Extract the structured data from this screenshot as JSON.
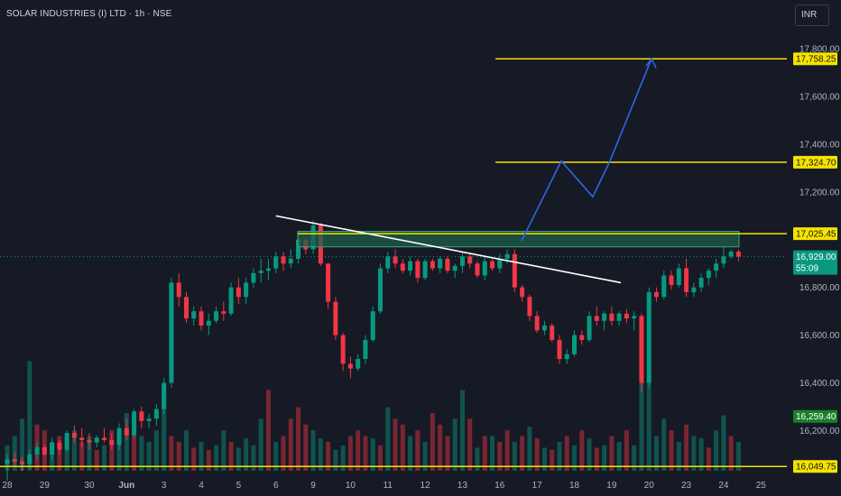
{
  "header": {
    "title": "SOLAR INDUSTRIES (I) LTD · 1h · NSE",
    "currency": "INR"
  },
  "chart_data": {
    "type": "candlestick",
    "title": "SOLAR INDUSTRIES (I) LTD · 1h · NSE",
    "y_range": [
      15990,
      17880
    ],
    "y_ticks": [
      {
        "value": 17800,
        "label": "17,800.00"
      },
      {
        "value": 17600,
        "label": "17,600.00"
      },
      {
        "value": 17400,
        "label": "17,400.00"
      },
      {
        "value": 17200,
        "label": "17,200.00"
      },
      {
        "value": 16800,
        "label": "16,800.00"
      },
      {
        "value": 16600,
        "label": "16,600.00"
      },
      {
        "value": 16400,
        "label": "16,400.00"
      },
      {
        "value": 16200,
        "label": "16,200.00"
      }
    ],
    "x_ticks": [
      {
        "bar": 0,
        "label": "28"
      },
      {
        "bar": 5,
        "label": "29"
      },
      {
        "bar": 11,
        "label": "30"
      },
      {
        "bar": 16,
        "label": "Jun"
      },
      {
        "bar": 21,
        "label": "3"
      },
      {
        "bar": 26,
        "label": "4"
      },
      {
        "bar": 31,
        "label": "5"
      },
      {
        "bar": 36,
        "label": "6"
      },
      {
        "bar": 41,
        "label": "9"
      },
      {
        "bar": 46,
        "label": "10"
      },
      {
        "bar": 51,
        "label": "11"
      },
      {
        "bar": 56,
        "label": "12"
      },
      {
        "bar": 61,
        "label": "13"
      },
      {
        "bar": 66,
        "label": "16"
      },
      {
        "bar": 71,
        "label": "17"
      },
      {
        "bar": 76,
        "label": "18"
      },
      {
        "bar": 81,
        "label": "19"
      },
      {
        "bar": 86,
        "label": "20"
      },
      {
        "bar": 91,
        "label": "23"
      },
      {
        "bar": 96,
        "label": "24"
      },
      {
        "bar": 101,
        "label": "25"
      }
    ],
    "candles": [
      [
        16060,
        16100,
        15990,
        16080
      ],
      [
        16080,
        16110,
        16050,
        16070
      ],
      [
        16070,
        16090,
        16030,
        16060
      ],
      [
        16060,
        16120,
        16040,
        16100
      ],
      [
        16100,
        16150,
        16080,
        16130
      ],
      [
        16130,
        16140,
        16090,
        16100
      ],
      [
        16100,
        16170,
        16080,
        16150
      ],
      [
        16150,
        16160,
        16100,
        16120
      ],
      [
        16120,
        16200,
        16110,
        16190
      ],
      [
        16190,
        16220,
        16150,
        16170
      ],
      [
        16170,
        16210,
        16130,
        16160
      ],
      [
        16160,
        16190,
        16120,
        16150
      ],
      [
        16150,
        16180,
        16130,
        16170
      ],
      [
        16170,
        16210,
        16150,
        16160
      ],
      [
        16160,
        16190,
        16120,
        16140
      ],
      [
        16140,
        16230,
        16120,
        16210
      ],
      [
        16210,
        16250,
        16160,
        16180
      ],
      [
        16180,
        16290,
        16170,
        16280
      ],
      [
        16280,
        16300,
        16210,
        16240
      ],
      [
        16240,
        16270,
        16210,
        16250
      ],
      [
        16250,
        16310,
        16220,
        16290
      ],
      [
        16290,
        16420,
        16270,
        16400
      ],
      [
        16400,
        16840,
        16380,
        16820
      ],
      [
        16820,
        16860,
        16720,
        16760
      ],
      [
        16760,
        16780,
        16650,
        16670
      ],
      [
        16670,
        16720,
        16640,
        16700
      ],
      [
        16700,
        16720,
        16620,
        16640
      ],
      [
        16640,
        16690,
        16600,
        16660
      ],
      [
        16660,
        16720,
        16650,
        16700
      ],
      [
        16700,
        16740,
        16660,
        16690
      ],
      [
        16690,
        16820,
        16680,
        16800
      ],
      [
        16800,
        16840,
        16730,
        16760
      ],
      [
        16760,
        16840,
        16730,
        16820
      ],
      [
        16820,
        16880,
        16800,
        16860
      ],
      [
        16860,
        16920,
        16820,
        16870
      ],
      [
        16870,
        16920,
        16830,
        16880
      ],
      [
        16880,
        16950,
        16860,
        16930
      ],
      [
        16930,
        16950,
        16870,
        16900
      ],
      [
        16900,
        16960,
        16880,
        16920
      ],
      [
        16920,
        17020,
        16900,
        17000
      ],
      [
        17000,
        17010,
        16940,
        16960
      ],
      [
        16960,
        17080,
        16940,
        17060
      ],
      [
        17060,
        17070,
        16890,
        16900
      ],
      [
        16900,
        16900,
        16710,
        16740
      ],
      [
        16740,
        16760,
        16580,
        16600
      ],
      [
        16600,
        16610,
        16450,
        16480
      ],
      [
        16480,
        16510,
        16420,
        16460
      ],
      [
        16460,
        16520,
        16450,
        16500
      ],
      [
        16500,
        16600,
        16480,
        16580
      ],
      [
        16580,
        16720,
        16570,
        16700
      ],
      [
        16700,
        16900,
        16690,
        16880
      ],
      [
        16880,
        16950,
        16860,
        16930
      ],
      [
        16930,
        16960,
        16880,
        16900
      ],
      [
        16900,
        16920,
        16860,
        16870
      ],
      [
        16870,
        16930,
        16850,
        16910
      ],
      [
        16910,
        16920,
        16820,
        16840
      ],
      [
        16840,
        16920,
        16830,
        16910
      ],
      [
        16910,
        16920,
        16870,
        16880
      ],
      [
        16880,
        16930,
        16860,
        16920
      ],
      [
        16920,
        16930,
        16860,
        16870
      ],
      [
        16870,
        16900,
        16840,
        16890
      ],
      [
        16890,
        16950,
        16860,
        16930
      ],
      [
        16930,
        16940,
        16880,
        16900
      ],
      [
        16900,
        16910,
        16840,
        16850
      ],
      [
        16850,
        16930,
        16830,
        16910
      ],
      [
        16910,
        16920,
        16870,
        16880
      ],
      [
        16880,
        16940,
        16860,
        16920
      ],
      [
        16920,
        16960,
        16900,
        16940
      ],
      [
        16940,
        16960,
        16780,
        16800
      ],
      [
        16800,
        16810,
        16740,
        16760
      ],
      [
        16760,
        16770,
        16660,
        16680
      ],
      [
        16680,
        16700,
        16610,
        16620
      ],
      [
        16620,
        16660,
        16600,
        16640
      ],
      [
        16640,
        16650,
        16570,
        16580
      ],
      [
        16580,
        16600,
        16480,
        16500
      ],
      [
        16500,
        16540,
        16480,
        16520
      ],
      [
        16520,
        16620,
        16510,
        16600
      ],
      [
        16600,
        16620,
        16560,
        16580
      ],
      [
        16580,
        16700,
        16570,
        16680
      ],
      [
        16680,
        16720,
        16640,
        16660
      ],
      [
        16660,
        16700,
        16620,
        16690
      ],
      [
        16690,
        16720,
        16640,
        16660
      ],
      [
        16660,
        16700,
        16640,
        16690
      ],
      [
        16690,
        16710,
        16650,
        16670
      ],
      [
        16670,
        16700,
        16620,
        16680
      ],
      [
        16680,
        16690,
        16360,
        16400
      ],
      [
        16400,
        16800,
        16380,
        16780
      ],
      [
        16780,
        16800,
        16740,
        16760
      ],
      [
        16760,
        16870,
        16750,
        16850
      ],
      [
        16850,
        16870,
        16790,
        16810
      ],
      [
        16810,
        16900,
        16800,
        16880
      ],
      [
        16880,
        16920,
        16760,
        16780
      ],
      [
        16780,
        16820,
        16760,
        16800
      ],
      [
        16800,
        16860,
        16780,
        16840
      ],
      [
        16840,
        16880,
        16810,
        16870
      ],
      [
        16870,
        16920,
        16840,
        16900
      ],
      [
        16900,
        16970,
        16880,
        16930
      ],
      [
        16930,
        16960,
        16920,
        16950
      ],
      [
        16950,
        16960,
        16910,
        16929
      ]
    ],
    "volume_max": 100,
    "volumes": [
      [
        22,
        "g"
      ],
      [
        30,
        "g"
      ],
      [
        45,
        "g"
      ],
      [
        95,
        "g"
      ],
      [
        40,
        "r"
      ],
      [
        35,
        "r"
      ],
      [
        25,
        "g"
      ],
      [
        30,
        "r"
      ],
      [
        20,
        "g"
      ],
      [
        35,
        "g"
      ],
      [
        25,
        "r"
      ],
      [
        30,
        "g"
      ],
      [
        18,
        "r"
      ],
      [
        22,
        "g"
      ],
      [
        35,
        "r"
      ],
      [
        28,
        "g"
      ],
      [
        50,
        "g"
      ],
      [
        40,
        "r"
      ],
      [
        30,
        "g"
      ],
      [
        25,
        "g"
      ],
      [
        35,
        "g"
      ],
      [
        70,
        "g"
      ],
      [
        30,
        "r"
      ],
      [
        25,
        "r"
      ],
      [
        35,
        "g"
      ],
      [
        20,
        "r"
      ],
      [
        25,
        "g"
      ],
      [
        18,
        "r"
      ],
      [
        22,
        "g"
      ],
      [
        35,
        "g"
      ],
      [
        25,
        "r"
      ],
      [
        20,
        "g"
      ],
      [
        28,
        "g"
      ],
      [
        22,
        "g"
      ],
      [
        45,
        "g"
      ],
      [
        70,
        "r"
      ],
      [
        25,
        "g"
      ],
      [
        30,
        "r"
      ],
      [
        45,
        "r"
      ],
      [
        55,
        "r"
      ],
      [
        40,
        "r"
      ],
      [
        35,
        "g"
      ],
      [
        28,
        "g"
      ],
      [
        25,
        "r"
      ],
      [
        18,
        "g"
      ],
      [
        22,
        "g"
      ],
      [
        30,
        "r"
      ],
      [
        35,
        "r"
      ],
      [
        30,
        "r"
      ],
      [
        28,
        "g"
      ],
      [
        22,
        "r"
      ],
      [
        55,
        "g"
      ],
      [
        45,
        "r"
      ],
      [
        40,
        "r"
      ],
      [
        30,
        "g"
      ],
      [
        35,
        "r"
      ],
      [
        25,
        "g"
      ],
      [
        50,
        "r"
      ],
      [
        40,
        "r"
      ],
      [
        30,
        "r"
      ],
      [
        45,
        "g"
      ],
      [
        70,
        "g"
      ],
      [
        45,
        "r"
      ],
      [
        20,
        "g"
      ],
      [
        30,
        "r"
      ],
      [
        30,
        "g"
      ],
      [
        25,
        "r"
      ],
      [
        35,
        "r"
      ],
      [
        25,
        "g"
      ],
      [
        30,
        "r"
      ],
      [
        38,
        "g"
      ],
      [
        28,
        "r"
      ],
      [
        20,
        "g"
      ],
      [
        18,
        "r"
      ],
      [
        25,
        "g"
      ],
      [
        30,
        "r"
      ],
      [
        22,
        "g"
      ],
      [
        35,
        "r"
      ],
      [
        28,
        "g"
      ],
      [
        20,
        "r"
      ],
      [
        22,
        "g"
      ],
      [
        30,
        "r"
      ],
      [
        25,
        "g"
      ],
      [
        35,
        "r"
      ],
      [
        22,
        "g"
      ],
      [
        100,
        "g"
      ],
      [
        80,
        "g"
      ],
      [
        30,
        "g"
      ],
      [
        45,
        "g"
      ],
      [
        35,
        "r"
      ],
      [
        25,
        "g"
      ],
      [
        40,
        "r"
      ],
      [
        30,
        "g"
      ],
      [
        28,
        "g"
      ],
      [
        20,
        "r"
      ],
      [
        35,
        "g"
      ],
      [
        48,
        "g"
      ],
      [
        30,
        "r"
      ],
      [
        25,
        "g"
      ]
    ],
    "trendline": {
      "from": [
        17100,
        36
      ],
      "to": [
        16820,
        84
      ]
    },
    "zone": {
      "top": 17035,
      "bottom": 16970
    },
    "horizontal_levels": [
      {
        "value": 17758.25,
        "label": "17,758.25",
        "style": "yellow"
      },
      {
        "value": 17324.7,
        "label": "17,324.70",
        "style": "yellow"
      },
      {
        "value": 17025.45,
        "label": "17,025.45",
        "style": "yellow"
      },
      {
        "value": 16049.75,
        "label": "16,049.75",
        "style": "yellow"
      }
    ],
    "projection_path": [
      [
        16995,
        70
      ],
      [
        17330,
        77
      ],
      [
        17180,
        81
      ],
      [
        17330,
        83
      ],
      [
        17758,
        89
      ]
    ],
    "last_price": {
      "value": 16929.0,
      "label": "16,929.00",
      "countdown": "55:09"
    },
    "marker_label": {
      "value": 16259.4,
      "label": "16,259.40"
    },
    "colors": {
      "up": "#089981",
      "down": "#f23645",
      "level": "#f5e300",
      "zone": "#1e5d4a",
      "projection": "#2f63e8",
      "trend": "#ffffff",
      "last_price": "#089981",
      "marker": "#1a7f2d"
    }
  }
}
